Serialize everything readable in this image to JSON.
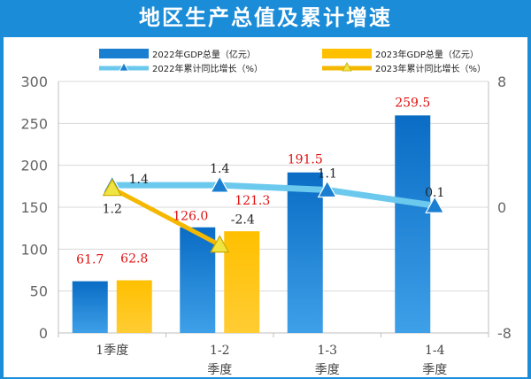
{
  "title": "地区生产总值及累计增速",
  "colors": {
    "header_bg": "#1a8cd8",
    "bar_2022": "#1a7fd0",
    "bar_2023": "#ffc000",
    "line_2022": "#6cc9ee",
    "line_2023": "#f5b800",
    "bar_label": "#e01010"
  },
  "legend": [
    {
      "label": "2022年GDP总量（亿元）",
      "kind": "bar",
      "color": "#1a7fd0"
    },
    {
      "label": "2023年GDP总量（亿元）",
      "kind": "bar",
      "color": "#ffc000"
    },
    {
      "label": "2022年累计同比增长（%）",
      "kind": "line",
      "color": "#6cc9ee"
    },
    {
      "label": "2023年累计同比增长（%）",
      "kind": "line",
      "color": "#f5b800"
    }
  ],
  "chart_data": {
    "type": "bar",
    "categories": [
      "1季度",
      "1-2\n季度",
      "1-3\n季度",
      "1-4\n季度"
    ],
    "y_left": {
      "min": 0,
      "max": 300,
      "ticks": [
        0,
        50,
        100,
        150,
        200,
        250,
        300
      ]
    },
    "y_right": {
      "min": -8,
      "max": 8,
      "ticks": [
        -8,
        0,
        8
      ]
    },
    "bars": [
      {
        "name": "2022年GDP总量（亿元）",
        "values": [
          61.7,
          126.0,
          191.5,
          259.5
        ],
        "labels": [
          "61.7",
          "126.0",
          "191.5",
          "259.5"
        ]
      },
      {
        "name": "2023年GDP总量（亿元）",
        "values": [
          62.8,
          121.3,
          null,
          null
        ],
        "labels": [
          "62.8",
          "121.3",
          "",
          ""
        ]
      }
    ],
    "lines": [
      {
        "name": "2022年累计同比增长（%）",
        "values": [
          1.4,
          1.4,
          1.1,
          0.1
        ],
        "labels": [
          "1.4",
          "1.4",
          "1.1",
          "0.1"
        ]
      },
      {
        "name": "2023年累计同比增长（%）",
        "values": [
          1.2,
          -2.4,
          null,
          null
        ],
        "labels": [
          "1.2",
          "-2.4",
          "",
          ""
        ]
      }
    ],
    "grid": true
  }
}
